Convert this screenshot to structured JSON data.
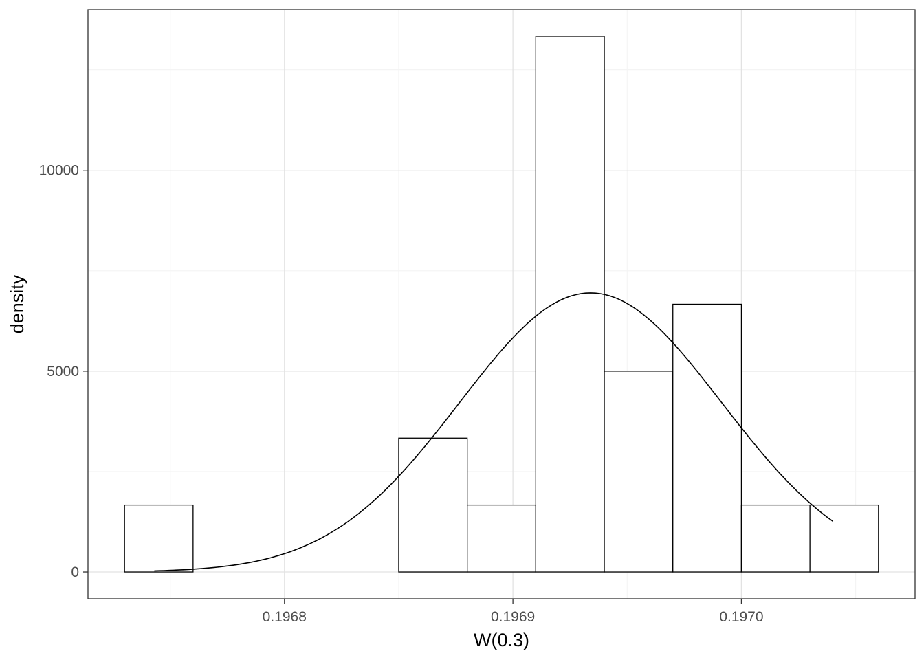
{
  "chart_data": {
    "type": "bar",
    "subtype": "histogram_with_density_curve",
    "title": "",
    "xlabel": "W(0.3)",
    "ylabel": "density",
    "x_domain": [
      0.196714,
      0.197076
    ],
    "y_domain": [
      -667,
      14000
    ],
    "x_ticks": [
      {
        "value": 0.1968,
        "label": "0.1968"
      },
      {
        "value": 0.1969,
        "label": "0.1969"
      },
      {
        "value": 0.197,
        "label": "0.1970"
      }
    ],
    "y_ticks": [
      {
        "value": 0,
        "label": "0"
      },
      {
        "value": 5000,
        "label": "5000"
      },
      {
        "value": 10000,
        "label": "10000"
      }
    ],
    "x_minor_ticks": [
      0.19675,
      0.19685,
      0.19695,
      0.19705
    ],
    "y_minor_ticks": [
      2500,
      7500,
      12500
    ],
    "bin_width": 3e-05,
    "bars": [
      {
        "x0": 0.19673,
        "x1": 0.19676,
        "density": 1667
      },
      {
        "x0": 0.19685,
        "x1": 0.19688,
        "density": 3333
      },
      {
        "x0": 0.19688,
        "x1": 0.19691,
        "density": 1667
      },
      {
        "x0": 0.19691,
        "x1": 0.19694,
        "density": 13333
      },
      {
        "x0": 0.19694,
        "x1": 0.19697,
        "density": 5000
      },
      {
        "x0": 0.19697,
        "x1": 0.197,
        "density": 6667
      },
      {
        "x0": 0.197,
        "x1": 0.19703,
        "density": 1667
      },
      {
        "x0": 0.19703,
        "x1": 0.19706,
        "density": 1667
      }
    ],
    "density_curve": {
      "distribution": "normal",
      "mean": 0.196934,
      "sd": 5.74e-05,
      "peak_density": 6950,
      "x_start": 0.196743,
      "x_end": 0.19704
    },
    "grid": true,
    "legend": false,
    "colors": {
      "background": "#ffffff",
      "panel_background": "#ffffff",
      "bar_fill": "#ffffff",
      "bar_stroke": "#000000",
      "curve": "#000000",
      "grid_major": "#e2e2e2",
      "grid_minor": "#f4f4f4",
      "panel_border": "#333333",
      "tick_mark": "#333333",
      "tick_label": "#4d4d4d",
      "axis_title": "#000000"
    }
  }
}
